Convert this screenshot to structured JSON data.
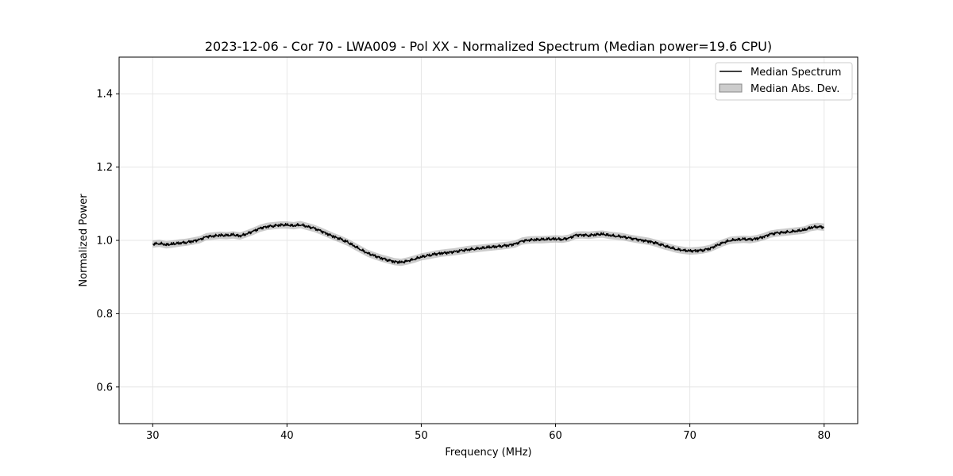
{
  "chart_data": {
    "type": "line",
    "title": "2023-12-06 - Cor 70 - LWA009 - Pol XX - Normalized Spectrum (Median power=19.6 CPU)",
    "xlabel": "Frequency (MHz)",
    "ylabel": "Normalized Power",
    "xlim": [
      27.5,
      82.5
    ],
    "ylim": [
      0.5,
      1.5
    ],
    "xticks": [
      30,
      40,
      50,
      60,
      70,
      80
    ],
    "yticks": [
      0.6,
      0.8,
      1.0,
      1.2,
      1.4
    ],
    "xtick_labels": [
      "30",
      "40",
      "50",
      "60",
      "70",
      "80"
    ],
    "ytick_labels": [
      "0.6",
      "0.8",
      "1.0",
      "1.2",
      "1.4"
    ],
    "grid": true,
    "legend": {
      "location": "top-right",
      "entries": [
        "Median Spectrum",
        "Median Abs. Dev."
      ]
    },
    "colors": {
      "line": "#000000",
      "band": "#999999",
      "grid": "#e6e6e6"
    },
    "series": [
      {
        "name": "Median Spectrum",
        "x": [
          30,
          30.5,
          31,
          31.5,
          32,
          32.5,
          33,
          33.5,
          34,
          34.5,
          35,
          35.5,
          36,
          36.5,
          37,
          37.5,
          38,
          38.5,
          39,
          39.5,
          40,
          40.5,
          41,
          41.5,
          42,
          42.5,
          43,
          43.5,
          44,
          44.5,
          45,
          45.5,
          46,
          46.5,
          47,
          47.5,
          48,
          48.5,
          49,
          49.5,
          50,
          50.5,
          51,
          51.5,
          52,
          52.5,
          53,
          53.5,
          54,
          54.5,
          55,
          55.5,
          56,
          56.5,
          57,
          57.5,
          58,
          58.5,
          59,
          59.5,
          60,
          60.5,
          61,
          61.5,
          62,
          62.5,
          63,
          63.5,
          64,
          64.5,
          65,
          65.5,
          66,
          66.5,
          67,
          67.5,
          68,
          68.5,
          69,
          69.5,
          70,
          70.5,
          71,
          71.5,
          72,
          72.5,
          73,
          73.5,
          74,
          74.5,
          75,
          75.5,
          76,
          76.5,
          77,
          77.5,
          78,
          78.5,
          79,
          79.5,
          80
        ],
        "values": [
          0.99,
          0.992,
          0.988,
          0.99,
          0.993,
          0.995,
          0.998,
          1.002,
          1.01,
          1.012,
          1.014,
          1.013,
          1.015,
          1.012,
          1.018,
          1.025,
          1.033,
          1.038,
          1.04,
          1.042,
          1.042,
          1.04,
          1.043,
          1.038,
          1.033,
          1.026,
          1.018,
          1.01,
          1.003,
          0.995,
          0.985,
          0.975,
          0.965,
          0.958,
          0.952,
          0.947,
          0.942,
          0.94,
          0.944,
          0.949,
          0.955,
          0.958,
          0.962,
          0.965,
          0.967,
          0.969,
          0.972,
          0.975,
          0.977,
          0.979,
          0.981,
          0.983,
          0.985,
          0.987,
          0.99,
          0.998,
          1.001,
          1.002,
          1.002,
          1.003,
          1.004,
          1.003,
          1.006,
          1.014,
          1.015,
          1.014,
          1.016,
          1.017,
          1.014,
          1.012,
          1.01,
          1.006,
          1.003,
          1.0,
          0.997,
          0.992,
          0.986,
          0.981,
          0.976,
          0.973,
          0.971,
          0.972,
          0.974,
          0.978,
          0.986,
          0.994,
          1.0,
          1.002,
          1.003,
          1.002,
          1.005,
          1.01,
          1.017,
          1.02,
          1.022,
          1.024,
          1.026,
          1.028,
          1.035,
          1.038,
          1.036
        ]
      },
      {
        "name": "Median Abs. Dev.",
        "spread": 0.01
      }
    ]
  }
}
